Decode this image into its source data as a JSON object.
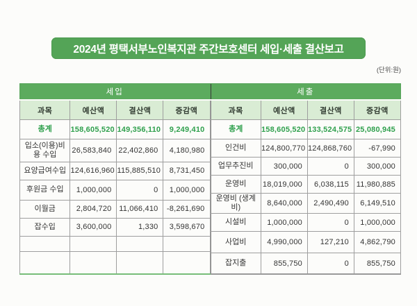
{
  "title": "2024년 평택서부노인복지관 주간보호센터 세입·세출 결산보고",
  "unit_label": "(단위:원)",
  "colors": {
    "title_green": "#54a457",
    "band_green": "#5cab5e",
    "header_bg_green": "#d9ecd4",
    "total_text_green": "#2fa04d",
    "body_text": "#333333",
    "grid_line": "#9e9e9e"
  },
  "columns": [
    "과목",
    "예산액",
    "결산액",
    "증감액"
  ],
  "tables": [
    {
      "name": "세입",
      "rows": [
        {
          "category": "총계",
          "budget": "158,605,520",
          "settlement": "149,356,110",
          "change": "9,249,410"
        },
        {
          "category": "입소(이용)비용 수입",
          "budget": "26,583,840",
          "settlement": "22,402,860",
          "change": "4,180,980"
        },
        {
          "category": "요양급여수입",
          "budget": "124,616,960",
          "settlement": "115,885,510",
          "change": "8,731,450"
        },
        {
          "category": "후원금 수입",
          "budget": "1,000,000",
          "settlement": "0",
          "change": "1,000,000"
        },
        {
          "category": "이월금",
          "budget": "2,804,720",
          "settlement": "11,066,410",
          "change": "-8,261,690"
        },
        {
          "category": "잡수입",
          "budget": "3,600,000",
          "settlement": "1,330",
          "change": "3,598,670"
        },
        {
          "category": "",
          "budget": "",
          "settlement": "",
          "change": ""
        },
        {
          "category": "",
          "budget": "",
          "settlement": "",
          "change": ""
        }
      ]
    },
    {
      "name": "세출",
      "rows": [
        {
          "category": "총계",
          "budget": "158,605,520",
          "settlement": "133,524,575",
          "change": "25,080,945"
        },
        {
          "category": "인건비",
          "budget": "124,800,770",
          "settlement": "124,868,760",
          "change": "-67,990"
        },
        {
          "category": "업무추진비",
          "budget": "300,000",
          "settlement": "0",
          "change": "300,000"
        },
        {
          "category": "운영비",
          "budget": "18,019,000",
          "settlement": "6,038,115",
          "change": "11,980,885"
        },
        {
          "category": "운영비 (생계비)",
          "budget": "8,640,000",
          "settlement": "2,490,490",
          "change": "6,149,510"
        },
        {
          "category": "시설비",
          "budget": "1,000,000",
          "settlement": "0",
          "change": "1,000,000"
        },
        {
          "category": "사업비",
          "budget": "4,990,000",
          "settlement": "127,210",
          "change": "4,862,790"
        },
        {
          "category": "잡지출",
          "budget": "855,750",
          "settlement": "0",
          "change": "855,750"
        }
      ]
    }
  ]
}
